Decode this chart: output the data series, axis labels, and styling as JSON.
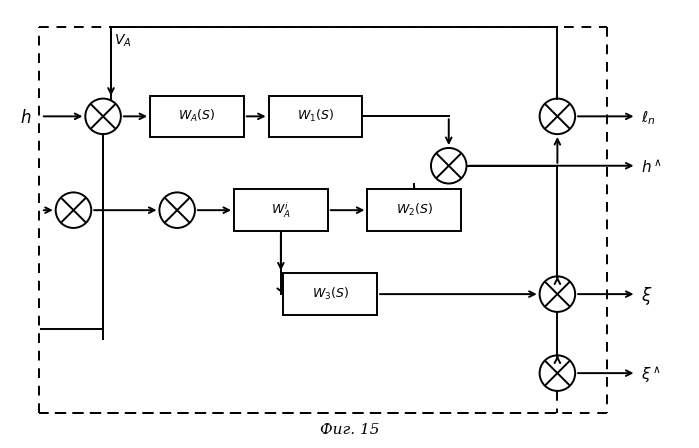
{
  "fig_width": 6.99,
  "fig_height": 4.48,
  "dpi": 100,
  "bg_color": "#ffffff",
  "line_color": "#000000",
  "caption": "Фиг. 15"
}
